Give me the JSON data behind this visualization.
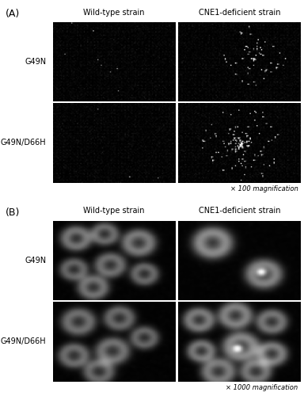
{
  "panel_A_label": "(A)",
  "panel_B_label": "(B)",
  "col_labels": [
    "Wild-type strain",
    "CNE1-deficient strain"
  ],
  "row_labels_A": [
    "G49N",
    "G49N/D66H"
  ],
  "row_labels_B": [
    "G49N",
    "G49N/D66H"
  ],
  "mag_A": "× 100 magnification",
  "mag_B": "× 1000 magnification",
  "bg_color": "#ffffff",
  "seed_A": 10,
  "seed_B": 77
}
